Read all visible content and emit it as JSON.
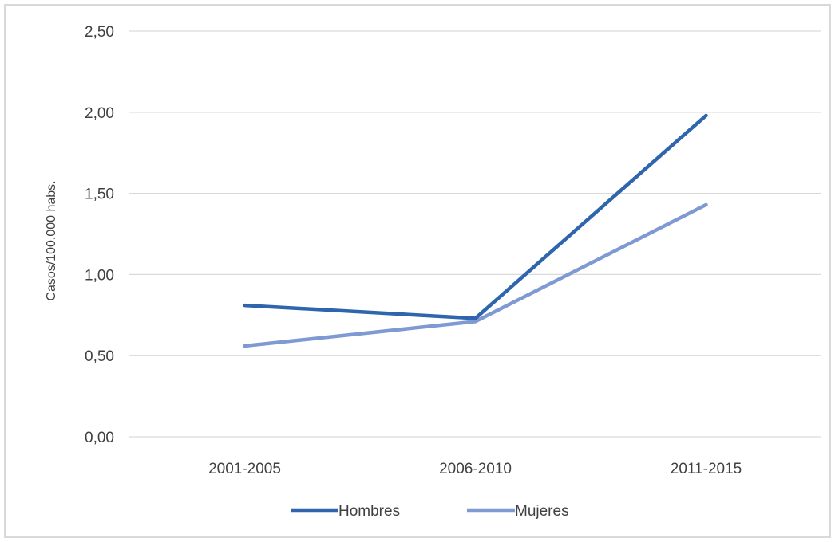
{
  "chart_data": {
    "type": "line",
    "categories": [
      "2001-2005",
      "2006-2010",
      "2011-2015"
    ],
    "series": [
      {
        "name": "Hombres",
        "values": [
          0.81,
          0.73,
          1.98
        ],
        "color": "#2e65ad"
      },
      {
        "name": "Mujeres",
        "values": [
          0.56,
          0.71,
          1.43
        ],
        "color": "#7f9ad3"
      }
    ],
    "y_ticks": [
      "0,00",
      "0,50",
      "1,00",
      "1,50",
      "2,00",
      "2,50"
    ],
    "y_tick_values": [
      0,
      0.5,
      1,
      1.5,
      2,
      2.5
    ],
    "ylim": [
      0,
      2.5
    ],
    "ylabel": "Casos/100.000 habs.",
    "xlabel": "",
    "grid": true,
    "legend_position": "bottom"
  }
}
